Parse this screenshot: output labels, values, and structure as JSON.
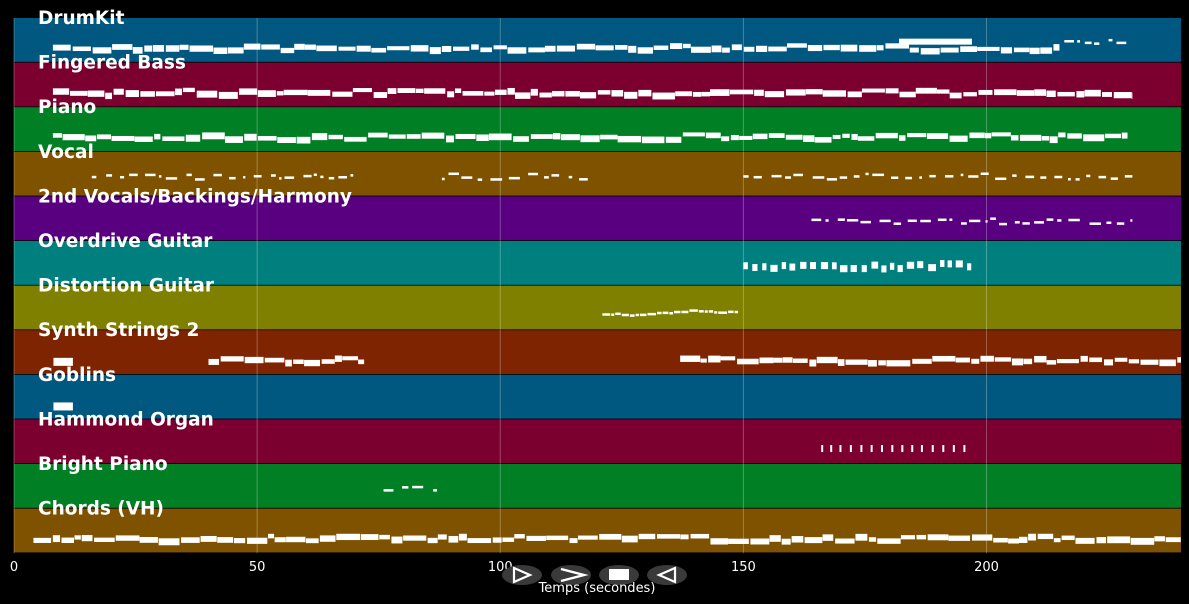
{
  "chart_data": {
    "type": "piano-roll",
    "xlabel": "Temps (secondes)",
    "xlim": [
      0,
      240
    ],
    "xticks": [
      0,
      50,
      100,
      150,
      200
    ],
    "grid": true,
    "tracks": [
      {
        "name": "DrumKit",
        "color": "#00577f",
        "segments": [
          [
            8,
            215,
            "dense"
          ],
          [
            182,
            197,
            "cluster"
          ],
          [
            216,
            230,
            "sparse"
          ]
        ]
      },
      {
        "name": "Fingered Bass",
        "color": "#7b0030",
        "segments": [
          [
            8,
            230,
            "dense"
          ]
        ]
      },
      {
        "name": "Piano",
        "color": "#007f25",
        "segments": [
          [
            8,
            229,
            "dense"
          ]
        ]
      },
      {
        "name": "Vocal",
        "color": "#7f5200",
        "segments": [
          [
            16,
            70,
            "sparse"
          ],
          [
            88,
            118,
            "sparse"
          ],
          [
            150,
            230,
            "sparse"
          ]
        ]
      },
      {
        "name": "2nd Vocals/Backings/Harmony",
        "color": "#58007f",
        "segments": [
          [
            164,
            230,
            "sparse"
          ]
        ]
      },
      {
        "name": "Overdrive Guitar",
        "color": "#007f7f",
        "segments": [
          [
            150,
            197,
            "blocks"
          ]
        ]
      },
      {
        "name": "Distortion Guitar",
        "color": "#7f7f00",
        "segments": [
          [
            121,
            149,
            "melody"
          ]
        ]
      },
      {
        "name": "Synth Strings 2",
        "color": "#7f2400",
        "segments": [
          [
            4,
            8,
            "block"
          ],
          [
            40,
            72,
            "dense"
          ],
          [
            137,
            240,
            "dense"
          ]
        ]
      },
      {
        "name": "Goblins",
        "color": "#00577f",
        "segments": [
          [
            4,
            8,
            "block"
          ]
        ]
      },
      {
        "name": "Hammond Organ",
        "color": "#7b0030",
        "segments": [
          [
            166,
            197,
            "ticks"
          ]
        ]
      },
      {
        "name": "Bright Piano",
        "color": "#007f25",
        "segments": [
          [
            76,
            87,
            "sparse"
          ]
        ]
      },
      {
        "name": "Chords (VH)",
        "color": "#7f5200",
        "segments": [
          [
            4,
            240,
            "dense"
          ]
        ]
      }
    ]
  },
  "controls": [
    {
      "name": "play-button",
      "icon": "play-icon"
    },
    {
      "name": "fast-forward-button",
      "icon": "fast-forward-icon"
    },
    {
      "name": "stop-button",
      "icon": "stop-icon"
    },
    {
      "name": "rewind-button",
      "icon": "rewind-icon"
    }
  ]
}
